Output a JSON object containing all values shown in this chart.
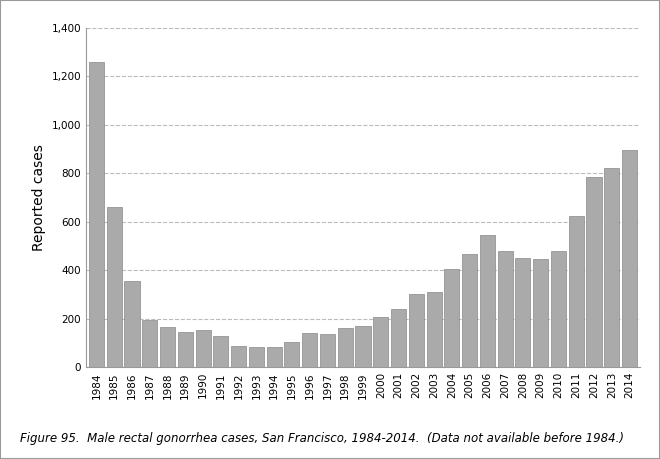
{
  "years": [
    1984,
    1985,
    1986,
    1987,
    1988,
    1989,
    1990,
    1991,
    1992,
    1993,
    1994,
    1995,
    1996,
    1997,
    1998,
    1999,
    2000,
    2001,
    2002,
    2003,
    2004,
    2005,
    2006,
    2007,
    2008,
    2009,
    2010,
    2011,
    2012,
    2013,
    2014
  ],
  "values": [
    1260,
    660,
    355,
    195,
    165,
    145,
    155,
    130,
    88,
    82,
    82,
    105,
    140,
    135,
    163,
    168,
    208,
    238,
    300,
    310,
    405,
    465,
    545,
    478,
    450,
    445,
    478,
    625,
    785,
    820,
    895
  ],
  "bar_color": "#aaaaaa",
  "bar_edgecolor": "#888888",
  "ylabel": "Reported cases",
  "ylim": [
    0,
    1400
  ],
  "yticks": [
    0,
    200,
    400,
    600,
    800,
    1000,
    1200,
    1400
  ],
  "grid_color": "#bbbbbb",
  "grid_linestyle": "--",
  "caption": "Figure 95.  Male rectal gonorrhea cases, San Francisco, 1984-2014.  (Data not available before 1984.)",
  "caption_fontsize": 8.5,
  "ylabel_fontsize": 10,
  "tick_fontsize": 7.5,
  "background_color": "#ffffff",
  "outer_border_color": "#999999"
}
